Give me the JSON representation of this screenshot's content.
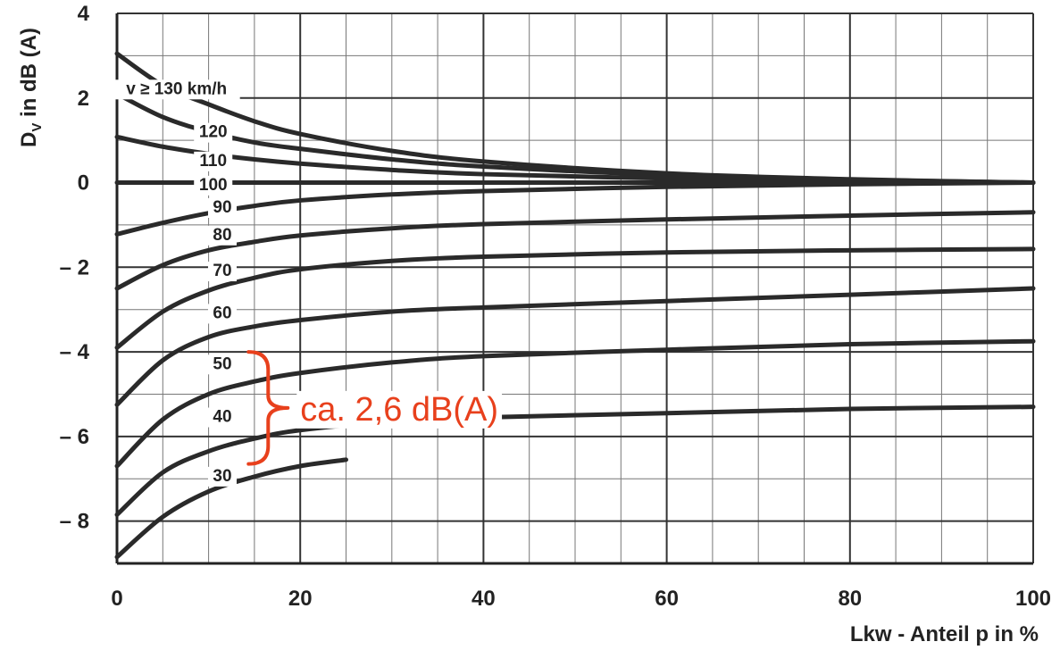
{
  "chart_data": {
    "type": "line",
    "xlabel": "Lkw - Anteil p in %",
    "ylabel_main": "D",
    "ylabel_sub": "V",
    "ylabel_rest": " in dB (A)",
    "xlim": [
      0,
      100
    ],
    "ylim": [
      -9,
      4
    ],
    "x_major_ticks": [
      0,
      20,
      40,
      60,
      80,
      100
    ],
    "x_tick_labels": [
      "0",
      "20",
      "40",
      "60",
      "80",
      "100"
    ],
    "y_major_ticks": [
      4,
      2,
      0,
      -2,
      -4,
      -6,
      -8
    ],
    "y_tick_labels": [
      "4",
      "2",
      "0",
      "– 2",
      "– 4",
      "– 6",
      "– 8"
    ],
    "x_minor_step": 5,
    "y_minor_step": 1,
    "grid": true,
    "series": [
      {
        "name": "v ≥ 130 km/h",
        "x": [
          0,
          5,
          10,
          15,
          20,
          30,
          40,
          60,
          80,
          100
        ],
        "y": [
          3.05,
          2.3,
          1.85,
          1.45,
          1.15,
          0.75,
          0.5,
          0.22,
          0.08,
          0.0
        ]
      },
      {
        "name": "120",
        "x": [
          0,
          5,
          10,
          15,
          20,
          30,
          40,
          60,
          80,
          100
        ],
        "y": [
          2.1,
          1.55,
          1.2,
          0.95,
          0.8,
          0.55,
          0.38,
          0.18,
          0.07,
          0.0
        ]
      },
      {
        "name": "110",
        "x": [
          0,
          5,
          10,
          15,
          20,
          30,
          40,
          60,
          80,
          100
        ],
        "y": [
          1.08,
          0.85,
          0.68,
          0.55,
          0.45,
          0.3,
          0.2,
          0.1,
          0.04,
          0.0
        ]
      },
      {
        "name": "100",
        "x": [
          0,
          100
        ],
        "y": [
          0.0,
          0.0
        ]
      },
      {
        "name": "90",
        "x": [
          0,
          5,
          10,
          15,
          20,
          30,
          40,
          60,
          80,
          100
        ],
        "y": [
          -1.22,
          -0.95,
          -0.72,
          -0.55,
          -0.42,
          -0.28,
          -0.2,
          -0.1,
          -0.04,
          0.0
        ]
      },
      {
        "name": "80",
        "x": [
          0,
          5,
          10,
          15,
          20,
          30,
          40,
          60,
          80,
          100
        ],
        "y": [
          -2.5,
          -1.95,
          -1.6,
          -1.4,
          -1.25,
          -1.08,
          -0.98,
          -0.87,
          -0.78,
          -0.7
        ]
      },
      {
        "name": "70",
        "x": [
          0,
          5,
          10,
          15,
          20,
          30,
          40,
          60,
          80,
          100
        ],
        "y": [
          -3.9,
          -3.05,
          -2.55,
          -2.25,
          -2.05,
          -1.85,
          -1.75,
          -1.65,
          -1.6,
          -1.57
        ]
      },
      {
        "name": "60",
        "x": [
          0,
          5,
          10,
          15,
          20,
          30,
          40,
          60,
          80,
          100
        ],
        "y": [
          -5.25,
          -4.2,
          -3.65,
          -3.4,
          -3.25,
          -3.05,
          -2.95,
          -2.8,
          -2.65,
          -2.5
        ]
      },
      {
        "name": "50",
        "x": [
          0,
          5,
          10,
          15,
          20,
          30,
          40,
          60,
          80,
          100
        ],
        "y": [
          -6.7,
          -5.6,
          -5.0,
          -4.7,
          -4.5,
          -4.25,
          -4.1,
          -3.95,
          -3.82,
          -3.75
        ]
      },
      {
        "name": "40",
        "x": [
          0,
          5,
          10,
          15,
          20,
          30,
          40,
          60,
          80,
          100
        ],
        "y": [
          -7.85,
          -6.85,
          -6.35,
          -6.05,
          -5.85,
          -5.65,
          -5.55,
          -5.45,
          -5.35,
          -5.3
        ]
      },
      {
        "name": "30",
        "x": [
          0,
          5,
          10,
          15,
          20,
          25
        ],
        "y": [
          -8.85,
          -7.9,
          -7.3,
          -6.95,
          -6.7,
          -6.55
        ]
      }
    ],
    "curve_labels": [
      {
        "text": "v ≥ 130 km/h",
        "x": 6.5,
        "y": 2.2
      },
      {
        "text": "120",
        "x": 10.5,
        "y": 1.18
      },
      {
        "text": "110",
        "x": 10.5,
        "y": 0.5
      },
      {
        "text": "100",
        "x": 10.5,
        "y": -0.07
      },
      {
        "text": "90",
        "x": 11.5,
        "y": -0.6
      },
      {
        "text": "80",
        "x": 11.5,
        "y": -1.25
      },
      {
        "text": "70",
        "x": 11.5,
        "y": -2.1
      },
      {
        "text": "60",
        "x": 11.5,
        "y": -3.1
      },
      {
        "text": "50",
        "x": 11.5,
        "y": -4.3
      },
      {
        "text": "40",
        "x": 11.5,
        "y": -5.55
      },
      {
        "text": "30",
        "x": 11.5,
        "y": -6.95
      }
    ],
    "annotation": {
      "text": "ca. 2,6 dB(A)",
      "color": "#e8401c",
      "brace_x": 16.5,
      "brace_top": -4.0,
      "brace_bottom": -6.65
    },
    "line_color": "#2a2a2a",
    "grid_color": "#777777"
  }
}
